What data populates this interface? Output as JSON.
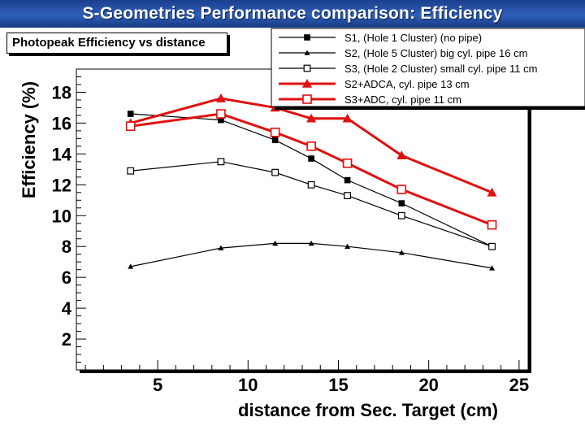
{
  "slide": {
    "title": "S-Geometries Performance comparison: Efficiency"
  },
  "chart_data": {
    "type": "line",
    "title": "Photopeak Efficiency vs distance",
    "xlabel": "distance from Sec. Target (cm)",
    "ylabel": "Efficiency (%)",
    "xlim": [
      0.5,
      25.5
    ],
    "ylim": [
      0,
      19.5
    ],
    "xticks": [
      5,
      10,
      15,
      20,
      25
    ],
    "yticks": [
      2,
      4,
      6,
      8,
      10,
      12,
      14,
      16,
      18
    ],
    "grid": false,
    "legend_position": "top-right",
    "series": [
      {
        "name": "S1, (Hole 1 Cluster) (no pipe)",
        "marker": "filled-square",
        "color": "#000000",
        "width": "thin",
        "x": [
          3.5,
          8.5,
          11.5,
          13.5,
          15.5,
          18.5,
          23.5
        ],
        "y": [
          16.6,
          16.2,
          14.9,
          13.7,
          12.3,
          10.8,
          8.0
        ]
      },
      {
        "name": "S2, (Hole 5 Cluster) big cyl. pipe 16 cm",
        "marker": "filled-triangle",
        "color": "#000000",
        "width": "thin",
        "x": [
          3.5,
          8.5,
          11.5,
          13.5,
          15.5,
          18.5,
          23.5
        ],
        "y": [
          6.7,
          7.9,
          8.2,
          8.2,
          8.0,
          7.6,
          6.6
        ]
      },
      {
        "name": "S3, (Hole 2 Cluster) small cyl. pipe 11 cm",
        "marker": "open-square",
        "color": "#000000",
        "width": "thin",
        "x": [
          3.5,
          8.5,
          11.5,
          13.5,
          15.5,
          18.5,
          23.5
        ],
        "y": [
          12.9,
          13.5,
          12.8,
          12.0,
          11.3,
          10.0,
          8.0
        ]
      },
      {
        "name": "S2+ADCA, cyl. pipe 13 cm",
        "marker": "filled-triangle",
        "color": "#e01010",
        "width": "thick",
        "x": [
          3.5,
          8.5,
          11.5,
          13.5,
          15.5,
          18.5,
          23.5
        ],
        "y": [
          16.0,
          17.6,
          17.0,
          16.3,
          16.3,
          13.9,
          11.5
        ]
      },
      {
        "name": "S3+ADC, cyl. pipe 11 cm",
        "marker": "open-square",
        "color": "#e01010",
        "width": "thick",
        "x": [
          3.5,
          8.5,
          11.5,
          13.5,
          15.5,
          18.5,
          23.5
        ],
        "y": [
          15.8,
          16.6,
          15.4,
          14.5,
          13.4,
          11.7,
          9.4
        ]
      }
    ]
  }
}
